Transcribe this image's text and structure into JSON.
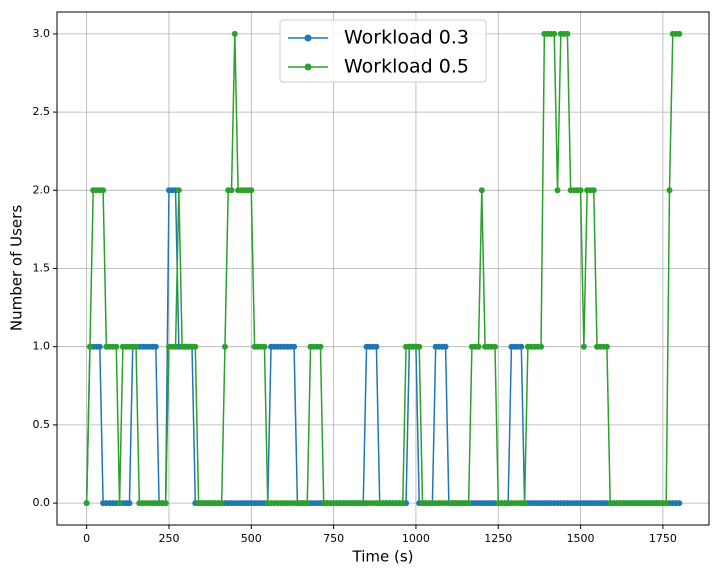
{
  "chart_data": {
    "type": "line",
    "xlabel": "Time (s)",
    "ylabel": "Number of Users",
    "x": [
      0,
      10,
      20,
      30,
      40,
      50,
      60,
      70,
      80,
      90,
      100,
      110,
      120,
      130,
      140,
      150,
      160,
      170,
      180,
      190,
      200,
      210,
      220,
      230,
      240,
      250,
      260,
      270,
      280,
      290,
      300,
      310,
      320,
      330,
      340,
      350,
      360,
      370,
      380,
      390,
      400,
      410,
      420,
      430,
      440,
      450,
      460,
      470,
      480,
      490,
      500,
      510,
      520,
      530,
      540,
      550,
      560,
      570,
      580,
      590,
      600,
      610,
      620,
      630,
      640,
      650,
      660,
      670,
      680,
      690,
      700,
      710,
      720,
      730,
      740,
      750,
      760,
      770,
      780,
      790,
      800,
      810,
      820,
      830,
      840,
      850,
      860,
      870,
      880,
      890,
      900,
      910,
      920,
      930,
      940,
      950,
      960,
      970,
      980,
      990,
      1000,
      1010,
      1020,
      1030,
      1040,
      1050,
      1060,
      1070,
      1080,
      1090,
      1100,
      1110,
      1120,
      1130,
      1140,
      1150,
      1160,
      1170,
      1180,
      1190,
      1200,
      1210,
      1220,
      1230,
      1240,
      1250,
      1260,
      1270,
      1280,
      1290,
      1300,
      1310,
      1320,
      1330,
      1340,
      1350,
      1360,
      1370,
      1380,
      1390,
      1400,
      1410,
      1420,
      1430,
      1440,
      1450,
      1460,
      1470,
      1480,
      1490,
      1500,
      1510,
      1520,
      1530,
      1540,
      1550,
      1560,
      1570,
      1580,
      1590,
      1600,
      1610,
      1620,
      1630,
      1640,
      1650,
      1660,
      1670,
      1680,
      1690,
      1700,
      1710,
      1720,
      1730,
      1740,
      1750,
      1760,
      1770,
      1780,
      1790,
      1800
    ],
    "series": [
      {
        "name": "Workload 0.3",
        "color": "#1f77b4",
        "values": [
          0,
          1,
          1,
          1,
          1,
          0,
          0,
          0,
          0,
          0,
          0,
          0,
          0,
          0,
          1,
          1,
          1,
          1,
          1,
          1,
          1,
          1,
          0,
          0,
          0,
          2,
          2,
          2,
          1,
          1,
          1,
          1,
          1,
          0,
          0,
          0,
          0,
          0,
          0,
          0,
          0,
          0,
          0,
          0,
          0,
          0,
          0,
          0,
          0,
          0,
          0,
          0,
          0,
          0,
          0,
          0,
          1,
          1,
          1,
          1,
          1,
          1,
          1,
          1,
          0,
          0,
          0,
          0,
          0,
          0,
          0,
          0,
          0,
          0,
          0,
          0,
          0,
          0,
          0,
          0,
          0,
          0,
          0,
          0,
          0,
          1,
          1,
          1,
          1,
          0,
          0,
          0,
          0,
          0,
          0,
          0,
          0,
          0,
          1,
          1,
          1,
          0,
          0,
          0,
          0,
          0,
          1,
          1,
          1,
          1,
          0,
          0,
          0,
          0,
          0,
          0,
          0,
          0,
          0,
          0,
          0,
          0,
          0,
          0,
          0,
          0,
          0,
          0,
          0,
          1,
          1,
          1,
          1,
          0,
          0,
          0,
          0,
          0,
          0,
          0,
          0,
          0,
          0,
          0,
          0,
          0,
          0,
          0,
          0,
          0,
          0,
          0,
          0,
          0,
          0,
          0,
          0,
          0,
          0,
          0,
          0,
          0,
          0,
          0,
          0,
          0,
          0,
          0,
          0,
          0,
          0,
          0,
          0,
          0,
          0,
          0,
          0,
          0,
          0,
          0,
          0
        ]
      },
      {
        "name": "Workload 0.5",
        "color": "#2ca02c",
        "values": [
          0,
          1,
          2,
          2,
          2,
          2,
          1,
          1,
          1,
          1,
          0,
          1,
          1,
          1,
          1,
          1,
          0,
          0,
          0,
          0,
          0,
          0,
          0,
          0,
          0,
          1,
          1,
          1,
          2,
          1,
          1,
          1,
          1,
          1,
          0,
          0,
          0,
          0,
          0,
          0,
          0,
          0,
          1,
          2,
          2,
          3,
          2,
          2,
          2,
          2,
          2,
          1,
          1,
          1,
          1,
          0,
          0,
          0,
          0,
          0,
          0,
          0,
          0,
          0,
          0,
          0,
          0,
          0,
          1,
          1,
          1,
          1,
          0,
          0,
          0,
          0,
          0,
          0,
          0,
          0,
          0,
          0,
          0,
          0,
          0,
          0,
          0,
          0,
          0,
          0,
          0,
          0,
          0,
          0,
          0,
          0,
          0,
          1,
          1,
          1,
          1,
          1,
          0,
          0,
          0,
          0,
          0,
          0,
          0,
          0,
          0,
          0,
          0,
          0,
          0,
          0,
          0,
          1,
          1,
          1,
          2,
          1,
          1,
          1,
          1,
          0,
          0,
          0,
          0,
          0,
          0,
          0,
          0,
          0,
          1,
          1,
          1,
          1,
          1,
          3,
          3,
          3,
          3,
          2,
          3,
          3,
          3,
          2,
          2,
          2,
          2,
          1,
          2,
          2,
          2,
          1,
          1,
          1,
          1,
          0,
          0,
          0,
          0,
          0,
          0,
          0,
          0,
          0,
          0,
          0,
          0,
          0,
          0,
          0,
          0,
          0,
          0,
          2,
          3,
          3,
          3
        ]
      }
    ],
    "xlim": [
      -90,
      1890
    ],
    "ylim": [
      -0.14,
      3.14
    ],
    "xticks": [
      0,
      250,
      500,
      750,
      1000,
      1250,
      1500,
      1750
    ],
    "yticks": [
      {
        "value": 0,
        "label": "0.0"
      },
      {
        "value": 0.5,
        "label": "0.5"
      },
      {
        "value": 1,
        "label": "1.0"
      },
      {
        "value": 1.5,
        "label": "1.5"
      },
      {
        "value": 2,
        "label": "2.0"
      },
      {
        "value": 2.5,
        "label": "2.5"
      },
      {
        "value": 3,
        "label": "3.0"
      }
    ],
    "grid": true,
    "legend": "upper center"
  }
}
